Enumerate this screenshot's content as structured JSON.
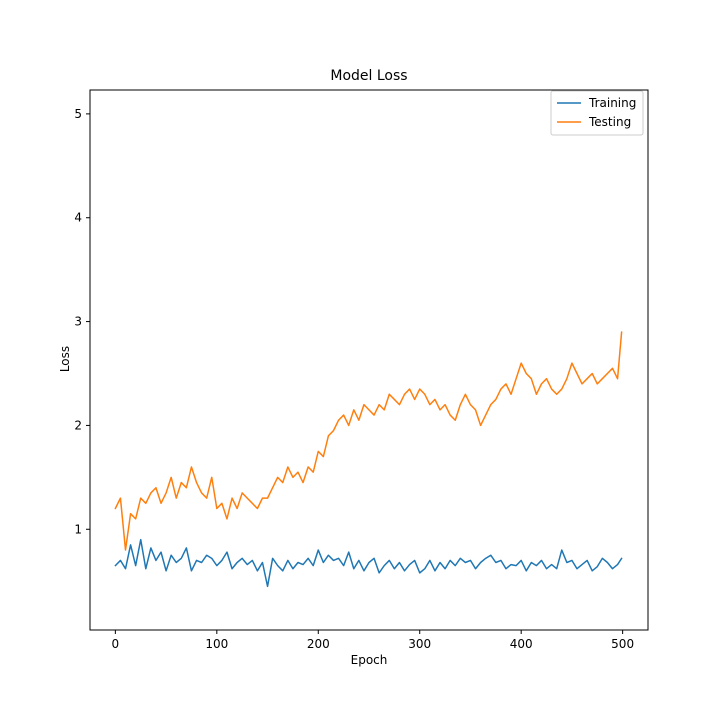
{
  "chart_data": {
    "type": "line",
    "title": "Model Loss",
    "xlabel": "Epoch",
    "ylabel": "Loss",
    "xlim": [
      -25,
      525
    ],
    "ylim": [
      0.03,
      5.23
    ],
    "xticks": [
      0,
      100,
      200,
      300,
      400,
      500
    ],
    "yticks": [
      1,
      2,
      3,
      4,
      5
    ],
    "legend": "top-right",
    "grid": false,
    "x": [
      0,
      5,
      10,
      15,
      20,
      25,
      30,
      35,
      40,
      45,
      50,
      55,
      60,
      65,
      70,
      75,
      80,
      85,
      90,
      95,
      100,
      105,
      110,
      115,
      120,
      125,
      130,
      135,
      140,
      145,
      150,
      155,
      160,
      165,
      170,
      175,
      180,
      185,
      190,
      195,
      200,
      205,
      210,
      215,
      220,
      225,
      230,
      235,
      240,
      245,
      250,
      255,
      260,
      265,
      270,
      275,
      280,
      285,
      290,
      295,
      300,
      305,
      310,
      315,
      320,
      325,
      330,
      335,
      340,
      345,
      350,
      355,
      360,
      365,
      370,
      375,
      380,
      385,
      390,
      395,
      400,
      405,
      410,
      415,
      420,
      425,
      430,
      435,
      440,
      445,
      450,
      455,
      460,
      465,
      470,
      475,
      480,
      485,
      490,
      495,
      499
    ],
    "series": [
      {
        "name": "Training",
        "color": "#1f77b4",
        "values": [
          0.65,
          0.7,
          0.62,
          0.85,
          0.65,
          0.9,
          0.62,
          0.82,
          0.7,
          0.78,
          0.6,
          0.75,
          0.68,
          0.72,
          0.82,
          0.6,
          0.7,
          0.68,
          0.75,
          0.72,
          0.65,
          0.7,
          0.78,
          0.62,
          0.68,
          0.72,
          0.66,
          0.7,
          0.6,
          0.68,
          0.45,
          0.72,
          0.65,
          0.6,
          0.7,
          0.62,
          0.68,
          0.66,
          0.72,
          0.65,
          0.8,
          0.68,
          0.75,
          0.7,
          0.72,
          0.65,
          0.78,
          0.62,
          0.7,
          0.6,
          0.68,
          0.72,
          0.58,
          0.65,
          0.7,
          0.62,
          0.68,
          0.6,
          0.66,
          0.7,
          0.58,
          0.62,
          0.7,
          0.6,
          0.68,
          0.62,
          0.7,
          0.65,
          0.72,
          0.68,
          0.7,
          0.62,
          0.68,
          0.72,
          0.75,
          0.68,
          0.7,
          0.62,
          0.66,
          0.65,
          0.7,
          0.6,
          0.68,
          0.65,
          0.7,
          0.62,
          0.66,
          0.62,
          0.8,
          0.68,
          0.7,
          0.62,
          0.66,
          0.7,
          0.6,
          0.64,
          0.72,
          0.68,
          0.62,
          0.66,
          0.72
        ]
      },
      {
        "name": "Testing",
        "color": "#ff7f0e",
        "values": [
          1.2,
          1.3,
          0.8,
          1.15,
          1.1,
          1.3,
          1.25,
          1.35,
          1.4,
          1.25,
          1.35,
          1.5,
          1.3,
          1.45,
          1.4,
          1.6,
          1.45,
          1.35,
          1.3,
          1.5,
          1.2,
          1.25,
          1.1,
          1.3,
          1.2,
          1.35,
          1.3,
          1.25,
          1.2,
          1.3,
          1.3,
          1.4,
          1.5,
          1.45,
          1.6,
          1.5,
          1.55,
          1.45,
          1.6,
          1.55,
          1.75,
          1.7,
          1.9,
          1.95,
          2.05,
          2.1,
          2.0,
          2.15,
          2.05,
          2.2,
          2.15,
          2.1,
          2.2,
          2.15,
          2.3,
          2.25,
          2.2,
          2.3,
          2.35,
          2.25,
          2.35,
          2.3,
          2.2,
          2.25,
          2.15,
          2.2,
          2.1,
          2.05,
          2.2,
          2.3,
          2.2,
          2.15,
          2.0,
          2.1,
          2.2,
          2.25,
          2.35,
          2.4,
          2.3,
          2.45,
          2.6,
          2.5,
          2.45,
          2.3,
          2.4,
          2.45,
          2.35,
          2.3,
          2.35,
          2.45,
          2.6,
          2.5,
          2.4,
          2.45,
          2.5,
          2.4,
          2.45,
          2.5,
          2.55,
          2.45,
          2.9
        ]
      }
    ]
  }
}
